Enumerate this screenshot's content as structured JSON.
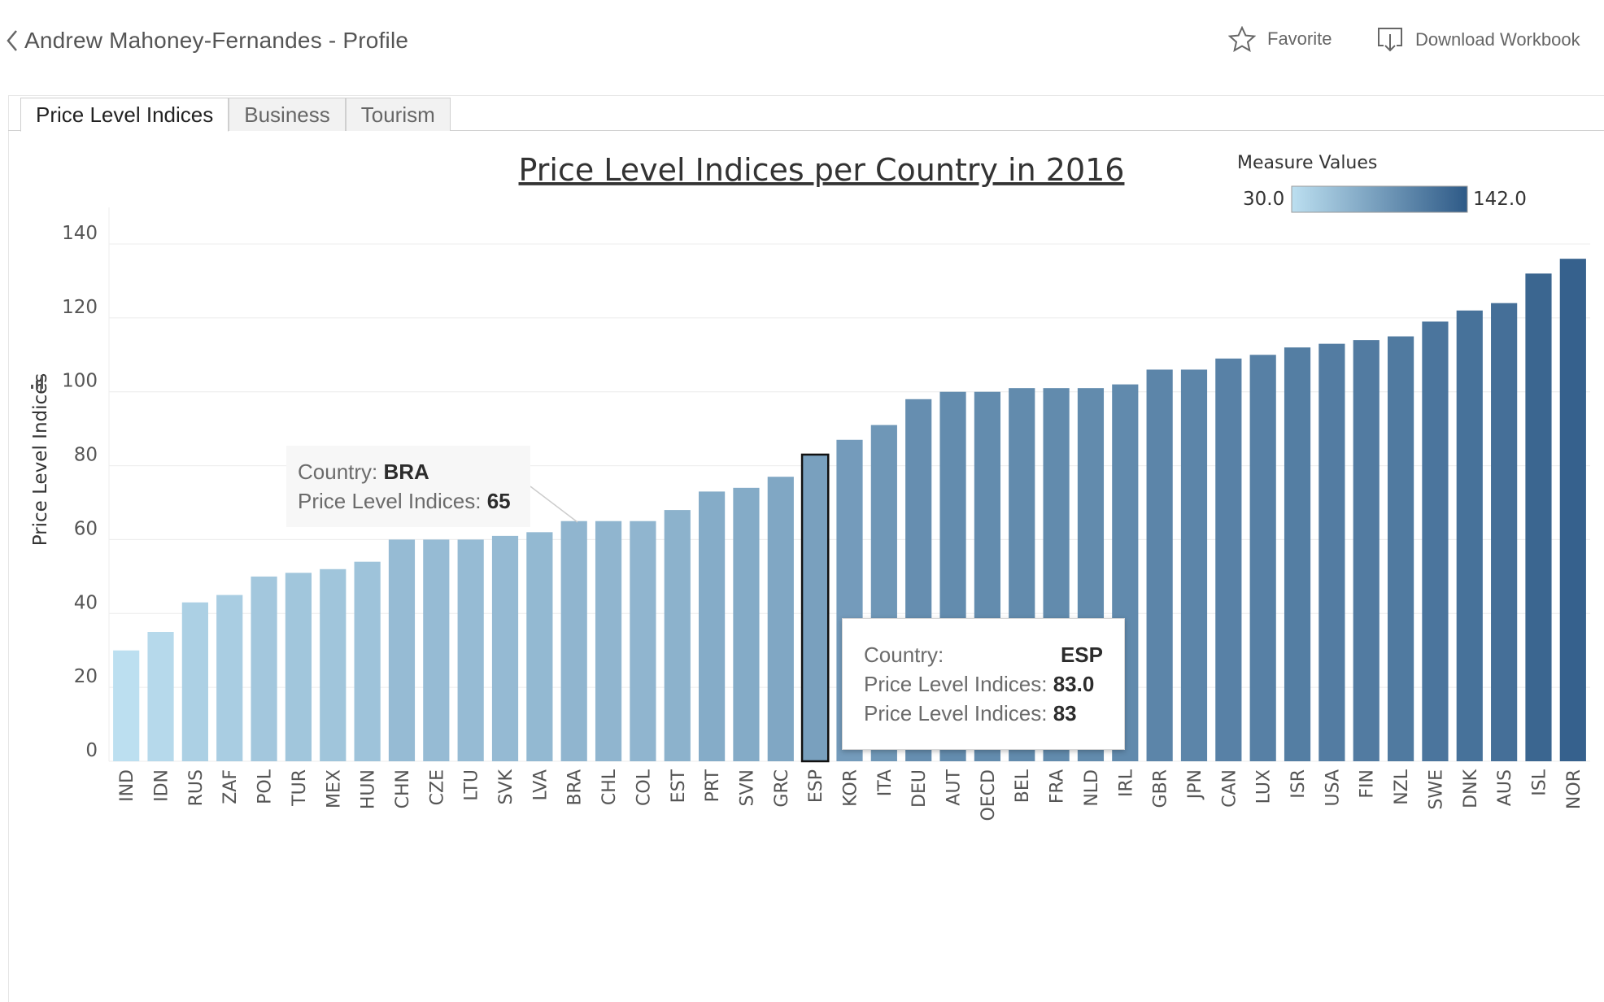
{
  "header": {
    "back_label": "Andrew Mahoney-Fernandes - Profile",
    "favorite_label": "Favorite",
    "download_label": "Download Workbook"
  },
  "tabs": [
    {
      "label": "Price Level Indices",
      "active": true
    },
    {
      "label": "Business",
      "active": false
    },
    {
      "label": "Tourism",
      "active": false
    }
  ],
  "legend": {
    "title": "Measure Values",
    "min_label": "30.0",
    "max_label": "142.0",
    "color_low": "#bcdff0",
    "color_high": "#2e5a87"
  },
  "tooltips": {
    "hover": {
      "country_key": "Country:",
      "country_value": "BRA",
      "pli_key": "Price Level Indices:",
      "pli_value": "65"
    },
    "selected": {
      "country_key": "Country:",
      "country_value": "ESP",
      "pli_key_1": "Price Level Indices:",
      "pli_value_1": "83.0",
      "pli_key_2": "Price Level Indices:",
      "pli_value_2": "83"
    }
  },
  "chart_data": {
    "type": "bar",
    "title": "Price Level Indices per Country in 2016",
    "xlabel": "",
    "ylabel": "Price Level Indices",
    "ylim": [
      0,
      140
    ],
    "yticks": [
      0,
      20,
      40,
      60,
      80,
      100,
      120,
      140
    ],
    "grid": true,
    "legend_placement": "top-right",
    "selected_category": "ESP",
    "hover_category": "BRA",
    "color_scale": {
      "min": 30,
      "max": 142,
      "low": "#bcdff0",
      "high": "#2e5a87"
    },
    "categories": [
      "IND",
      "IDN",
      "RUS",
      "ZAF",
      "POL",
      "TUR",
      "MEX",
      "HUN",
      "CHN",
      "CZE",
      "LTU",
      "SVK",
      "LVA",
      "BRA",
      "CHL",
      "COL",
      "EST",
      "PRT",
      "SVN",
      "GRC",
      "ESP",
      "KOR",
      "ITA",
      "DEU",
      "AUT",
      "OECD",
      "BEL",
      "FRA",
      "NLD",
      "IRL",
      "GBR",
      "JPN",
      "CAN",
      "LUX",
      "ISR",
      "USA",
      "FIN",
      "NZL",
      "SWE",
      "DNK",
      "AUS",
      "ISL",
      "NOR"
    ],
    "values": [
      30,
      35,
      43,
      45,
      50,
      51,
      52,
      54,
      60,
      60,
      60,
      61,
      62,
      65,
      65,
      65,
      68,
      73,
      74,
      77,
      83,
      87,
      91,
      98,
      100,
      100,
      101,
      101,
      101,
      102,
      106,
      106,
      109,
      110,
      112,
      113,
      114,
      115,
      119,
      122,
      124,
      132,
      136
    ]
  }
}
